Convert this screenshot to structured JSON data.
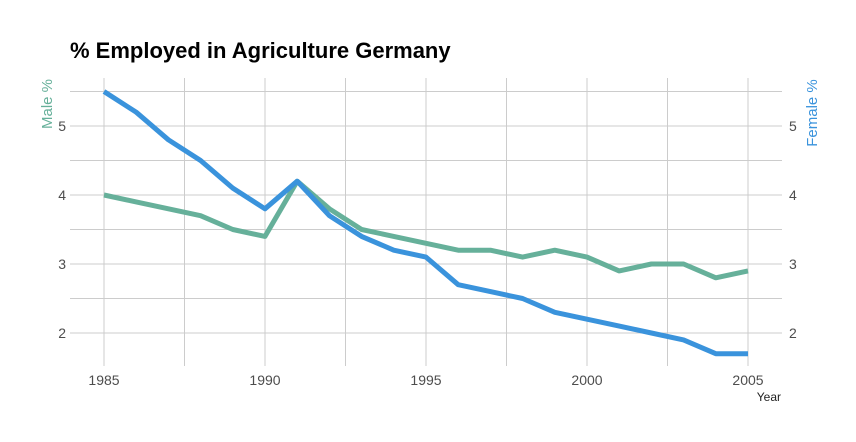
{
  "chart_data": {
    "type": "line",
    "title": "% Employed in Agriculture Germany",
    "xlabel": "Year",
    "ylabel_left": "Male %",
    "ylabel_right": "Female %",
    "xlim": [
      1984.3,
      2006
    ],
    "ylim": [
      1.55,
      5.6
    ],
    "x_ticks": [
      1985,
      1990,
      1995,
      2000,
      2005
    ],
    "x_gridlines": [
      1985,
      1987.5,
      1990,
      1992.5,
      1995,
      1997.5,
      2000,
      2002.5,
      2005
    ],
    "y_ticks": [
      2,
      3,
      4,
      5
    ],
    "y_gridlines": [
      2,
      2.5,
      3,
      3.5,
      4,
      4.5,
      5,
      5.5
    ],
    "grid": true,
    "x": [
      1985,
      1986,
      1987,
      1988,
      1989,
      1990,
      1991,
      1992,
      1993,
      1994,
      1995,
      1996,
      1997,
      1998,
      1999,
      2000,
      2001,
      2002,
      2003,
      2004,
      2005
    ],
    "series": [
      {
        "name": "Male %",
        "color": "#66b09a",
        "values": [
          4.0,
          3.9,
          3.8,
          3.7,
          3.5,
          3.4,
          4.2,
          3.8,
          3.5,
          3.4,
          3.3,
          3.2,
          3.2,
          3.1,
          3.2,
          3.1,
          2.9,
          3.0,
          3.0,
          2.8,
          2.9
        ]
      },
      {
        "name": "Female %",
        "color": "#3a93dc",
        "values": [
          5.5,
          5.2,
          4.8,
          4.5,
          4.1,
          3.8,
          4.2,
          3.7,
          3.4,
          3.2,
          3.1,
          2.7,
          2.6,
          2.5,
          2.3,
          2.2,
          2.1,
          2.0,
          1.9,
          1.7,
          1.7
        ]
      }
    ]
  }
}
